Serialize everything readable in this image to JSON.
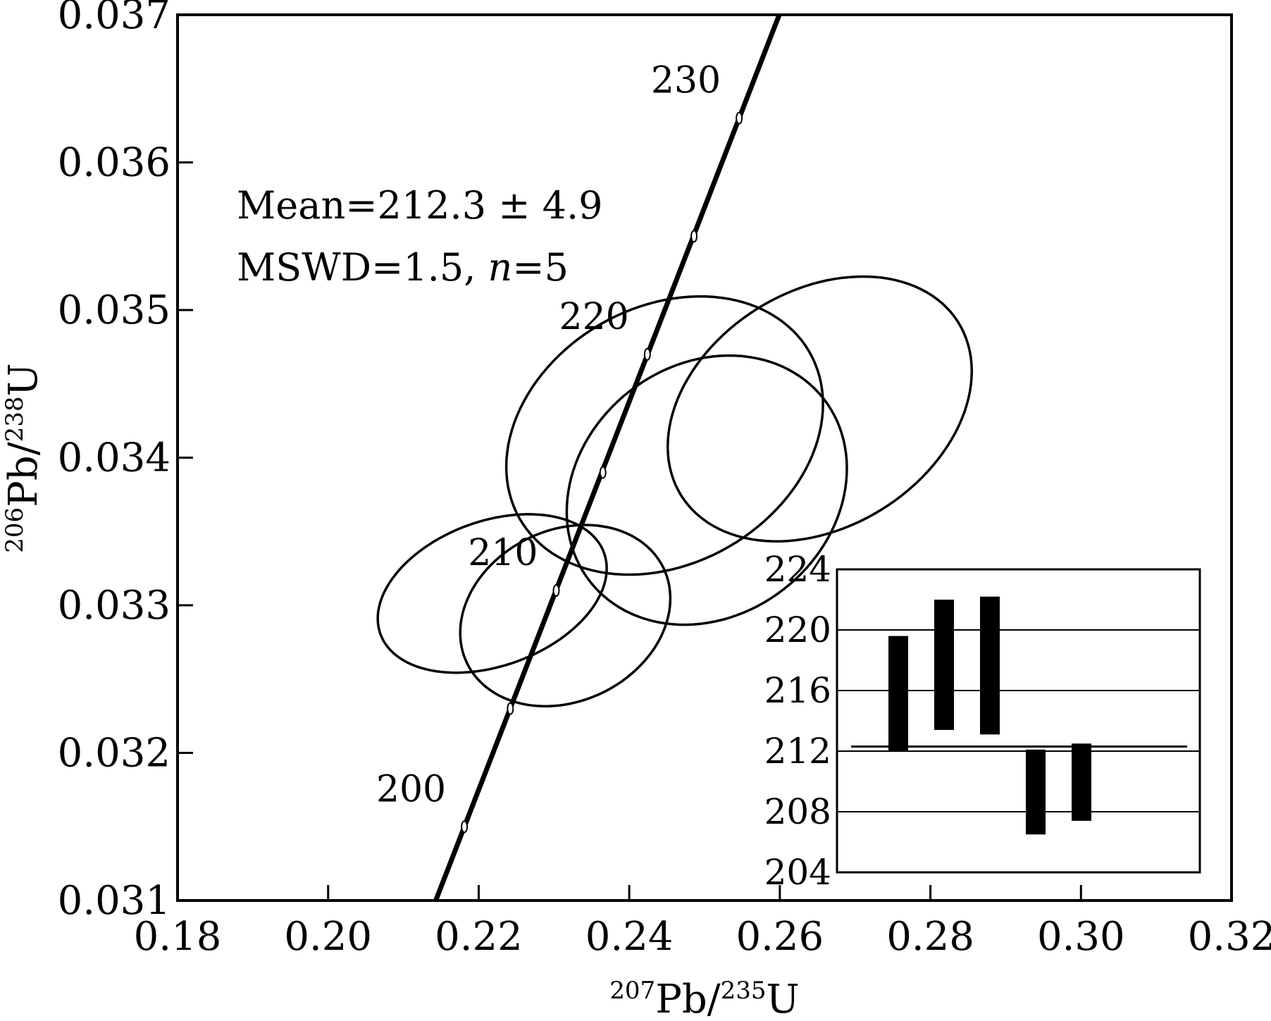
{
  "chart_data": [
    {
      "type": "scatter",
      "title": "",
      "xlabel": {
        "sup1": "207",
        "base1": "Pb/",
        "sup2": "235",
        "base2": "U"
      },
      "ylabel": {
        "sup1": "206",
        "base1": "Pb/",
        "sup2": "238",
        "base2": "U"
      },
      "xlim": [
        0.18,
        0.32
      ],
      "ylim": [
        0.031,
        0.037
      ],
      "x_ticks": [
        "0.18",
        "0.20",
        "0.22",
        "0.24",
        "0.26",
        "0.28",
        "0.30",
        "0.32"
      ],
      "y_ticks": [
        "0.031",
        "0.032",
        "0.033",
        "0.034",
        "0.035",
        "0.036",
        "0.037"
      ],
      "concordia": {
        "points": [
          {
            "age": "200",
            "x": 0.2181,
            "y": 0.0315
          },
          {
            "age": "",
            "x": 0.2242,
            "y": 0.0323
          },
          {
            "age": "210",
            "x": 0.2303,
            "y": 0.0331
          },
          {
            "age": "",
            "x": 0.2365,
            "y": 0.0339
          },
          {
            "age": "220",
            "x": 0.2424,
            "y": 0.0347
          },
          {
            "age": "",
            "x": 0.2486,
            "y": 0.0355
          },
          {
            "age": "230",
            "x": 0.2546,
            "y": 0.0363
          }
        ]
      },
      "ellipses": [
        {
          "cx": 0.2218,
          "cy": 0.03308,
          "rx": 0.0158,
          "ry": 0.00049,
          "angle_deg": 20
        },
        {
          "cx": 0.2315,
          "cy": 0.03293,
          "rx": 0.0145,
          "ry": 0.00058,
          "angle_deg": 26
        },
        {
          "cx": 0.2447,
          "cy": 0.03415,
          "rx": 0.0222,
          "ry": 0.00087,
          "angle_deg": 30
        },
        {
          "cx": 0.2503,
          "cy": 0.03378,
          "rx": 0.0197,
          "ry": 0.00085,
          "angle_deg": 38
        },
        {
          "cx": 0.2653,
          "cy": 0.03433,
          "rx": 0.0217,
          "ry": 0.0008,
          "angle_deg": 32
        }
      ],
      "annotations": {
        "mean_line": "Mean=212.3 ± 4.9",
        "mswd_prefix": "MSWD=1.5, ",
        "mswd_n": "n",
        "mswd_suffix": "=5"
      }
    },
    {
      "type": "bar",
      "title": "",
      "xlabel": "",
      "ylabel": "",
      "ylim": [
        204,
        224
      ],
      "y_ticks": [
        "204",
        "208",
        "212",
        "216",
        "220",
        "224"
      ],
      "grid": true,
      "mean": 212.3,
      "bars": [
        {
          "low": 212.0,
          "high": 219.6
        },
        {
          "low": 213.4,
          "high": 222.0
        },
        {
          "low": 213.1,
          "high": 222.2
        },
        {
          "low": 206.5,
          "high": 212.1
        },
        {
          "low": 207.4,
          "high": 212.5
        }
      ]
    }
  ]
}
